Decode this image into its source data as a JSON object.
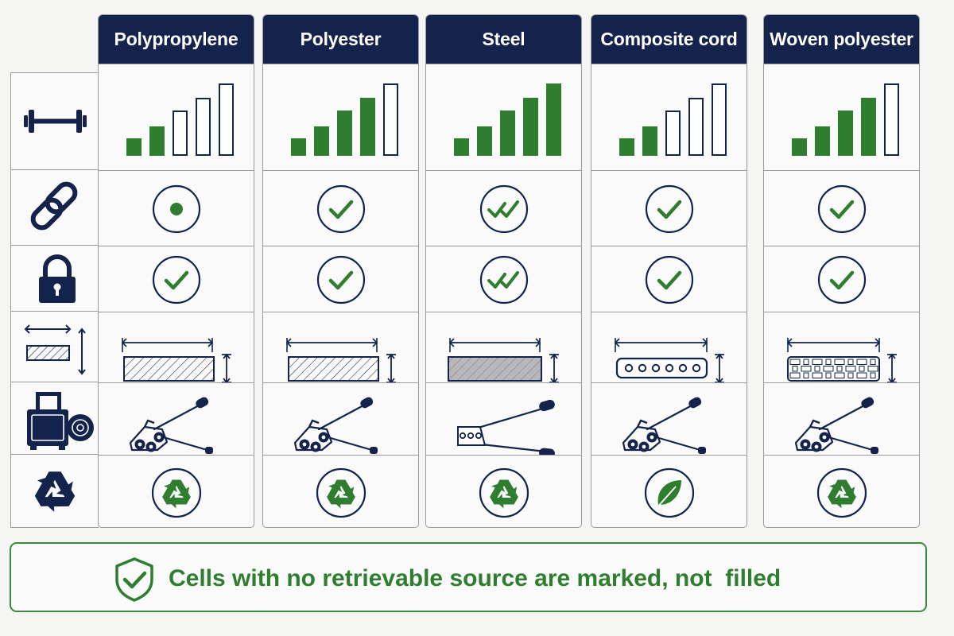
{
  "columns": [
    {
      "name": "Polypropylene",
      "strength_level": 2,
      "connection": "dot",
      "security": "check",
      "profile": "hatched",
      "tool": "tensioner",
      "end_of_life": "recycle-icon"
    },
    {
      "name": "Polyester",
      "strength_level": 4,
      "connection": "check",
      "security": "check",
      "profile": "hatched",
      "tool": "tensioner",
      "end_of_life": "recycle-icon"
    },
    {
      "name": "Steel",
      "strength_level": 5,
      "connection": "double-check",
      "security": "double-check",
      "profile": "solid-metal",
      "tool": "steel-sealer",
      "end_of_life": "recycle-icon"
    },
    {
      "name": "Composite cord",
      "strength_level": 2,
      "connection": "check",
      "security": "check",
      "profile": "cord",
      "tool": "tensioner",
      "end_of_life": "leaf-icon"
    },
    {
      "name": "Woven polyester",
      "strength_level": 4,
      "connection": "check",
      "security": "check",
      "profile": "woven",
      "tool": "tensioner",
      "end_of_life": "recycle-icon"
    }
  ],
  "row_icons": [
    "dumbbell-icon",
    "chain-link-icon",
    "padlock-icon",
    "dimensions-icon",
    "strapping-machine-icon",
    "recycle-icon"
  ],
  "footer": {
    "text": "Cells with no retrievable source are marked, not  filled",
    "icon": "shield-check-icon"
  },
  "colors": {
    "navy": "#13234b",
    "green": "#2f7d2f",
    "border": "#9a9a9a"
  }
}
